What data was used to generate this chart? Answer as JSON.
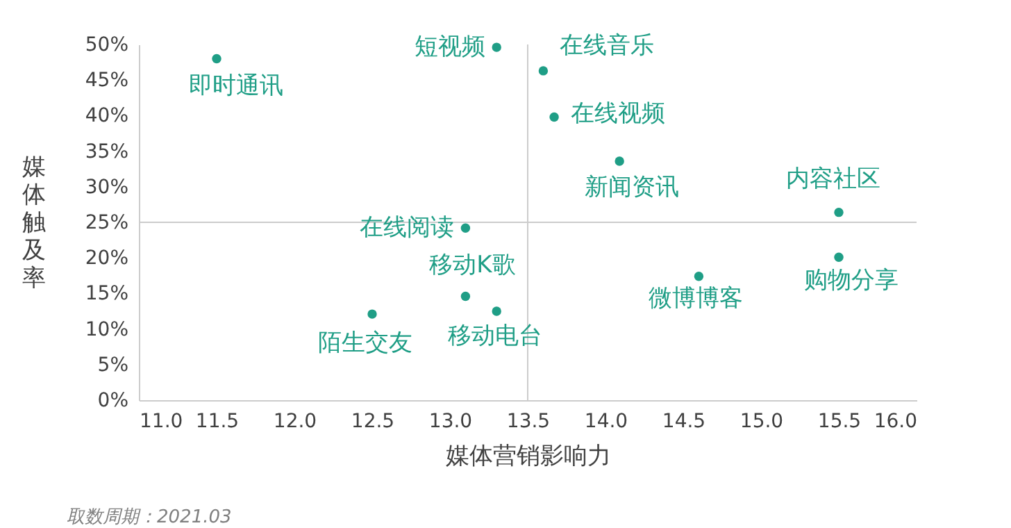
{
  "chart_data": {
    "type": "scatter",
    "xlabel": "媒体营销影响力",
    "ylabel": "媒体触及率",
    "series": [
      {
        "color": "#1f9e86",
        "x": [
          11.5,
          13.3,
          13.6,
          13.67,
          14.09,
          15.5,
          15.5,
          14.6,
          13.1,
          13.1,
          13.3,
          12.5
        ],
        "values": [
          48,
          49.6,
          46.3,
          39.8,
          33.6,
          26.4,
          20.1,
          17.4,
          24.2,
          14.6,
          12.5,
          12.1
        ]
      }
    ],
    "annotations": [
      {
        "text": "即时通讯",
        "x": 11.5,
        "y": 48
      },
      {
        "text": "短视频",
        "x": 13.3,
        "y": 49.6
      },
      {
        "text": "在线音乐",
        "x": 13.6,
        "y": 46.3
      },
      {
        "text": "在线视频",
        "x": 13.67,
        "y": 39.8
      },
      {
        "text": "新闻资讯",
        "x": 14.09,
        "y": 33.6
      },
      {
        "text": "内容社区",
        "x": 15.5,
        "y": 26.4
      },
      {
        "text": "购物分享",
        "x": 15.5,
        "y": 20.1
      },
      {
        "text": "微博博客",
        "x": 14.6,
        "y": 17.4
      },
      {
        "text": "在线阅读",
        "x": 13.1,
        "y": 24.2
      },
      {
        "text": "移动K歌",
        "x": 13.1,
        "y": 14.6
      },
      {
        "text": "移动电台",
        "x": 13.3,
        "y": 12.5
      },
      {
        "text": "陌生交友",
        "x": 12.5,
        "y": 12.1
      },
      "取数周期：2021.03"
    ],
    "xlim": [
      11.0,
      16.0
    ],
    "xticks": [
      {
        "value": 11,
        "label": "11.0"
      },
      11.5,
      {
        "value": 12,
        "label": "12.0"
      },
      12.5,
      {
        "value": 13,
        "label": "13.0"
      },
      13.5,
      {
        "value": 14,
        "label": "14.0"
      },
      14.5,
      {
        "value": 15,
        "label": "15.0"
      },
      15.5,
      {
        "value": 16,
        "label": "16.0"
      }
    ],
    "ylim": [
      0,
      50
    ],
    "yticks": [
      {
        "value": 0,
        "label": "0%"
      },
      {
        "value": 5,
        "label": "5%"
      },
      {
        "value": 10,
        "label": "10%"
      },
      {
        "value": 15,
        "label": "15%"
      },
      {
        "value": 20,
        "label": "20%"
      },
      {
        "value": 25,
        "label": "25%"
      },
      {
        "value": 30,
        "label": "30%"
      },
      {
        "value": 35,
        "label": "35%"
      },
      {
        "value": 40,
        "label": "40%"
      },
      {
        "value": 45,
        "label": "45%"
      },
      {
        "value": 50,
        "label": "50%"
      }
    ],
    "ref_lines": [
      {
        "axis": "x",
        "value": 13.5,
        "color": "#cccccc"
      },
      {
        "axis": "y",
        "value": 25,
        "color": "#cccccc"
      }
    ],
    "grid": false,
    "marker": "circle"
  }
}
